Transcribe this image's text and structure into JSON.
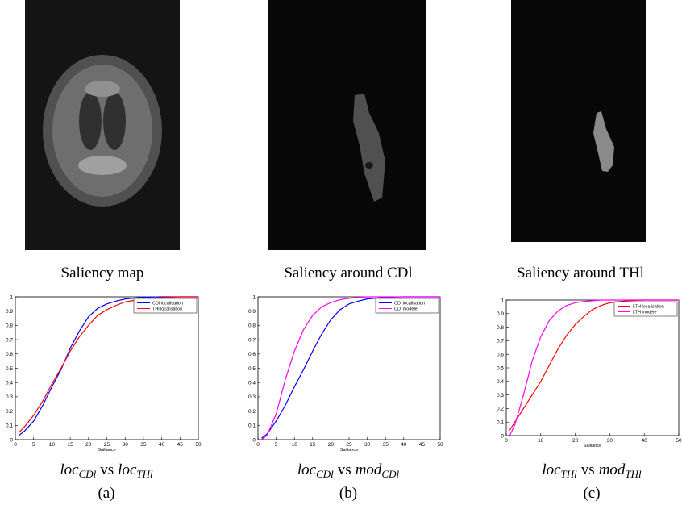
{
  "images": [
    {
      "caption": "Saliency map"
    },
    {
      "caption": "Saliency around CDl"
    },
    {
      "caption": "Saliency around THl"
    }
  ],
  "captions": [
    {
      "left": "loc",
      "left_sub": "CDl",
      "middle": "vs",
      "right": "loc",
      "right_sub": "THl",
      "label": "(a)"
    },
    {
      "left": "loc",
      "left_sub": "CDl",
      "middle": "vs",
      "right": "mod",
      "right_sub": "CDl",
      "label": "(b)"
    },
    {
      "left": "loc",
      "left_sub": "THl",
      "middle": "vs",
      "right": "mod",
      "right_sub": "THl",
      "label": "(c)"
    }
  ],
  "chart_data": [
    {
      "type": "line",
      "xlabel": "Saillance",
      "xlim": [
        0,
        50
      ],
      "ylim": [
        0,
        1
      ],
      "xticks": [
        0,
        5,
        10,
        15,
        20,
        25,
        30,
        35,
        40,
        45,
        50
      ],
      "yticks": [
        0,
        0.1,
        0.2,
        0.3,
        0.4,
        0.5,
        0.6,
        0.7,
        0.8,
        0.9,
        1
      ],
      "legend": "upper right",
      "x": [
        1,
        2.5,
        5,
        7.5,
        10,
        12.5,
        15,
        17.5,
        20,
        22.5,
        25,
        27.5,
        30,
        35,
        40,
        45,
        50
      ],
      "series": [
        {
          "name": "CDl localisation",
          "color": "#0000ff",
          "values": [
            0.03,
            0.06,
            0.13,
            0.24,
            0.37,
            0.49,
            0.64,
            0.76,
            0.86,
            0.92,
            0.95,
            0.97,
            0.985,
            0.997,
            1,
            1,
            1
          ]
        },
        {
          "name": "THl localisation",
          "color": "#ff0000",
          "values": [
            0.05,
            0.09,
            0.17,
            0.27,
            0.39,
            0.5,
            0.62,
            0.72,
            0.8,
            0.87,
            0.91,
            0.94,
            0.965,
            0.985,
            0.995,
            1,
            1
          ]
        }
      ]
    },
    {
      "type": "line",
      "xlabel": "Saillance",
      "xlim": [
        0,
        50
      ],
      "ylim": [
        0,
        1
      ],
      "xticks": [
        0,
        5,
        10,
        15,
        20,
        25,
        30,
        35,
        40,
        45,
        50
      ],
      "yticks": [
        0,
        0.1,
        0.2,
        0.3,
        0.4,
        0.5,
        0.6,
        0.7,
        0.8,
        0.9,
        1
      ],
      "legend": "upper right",
      "x": [
        1,
        2.5,
        5,
        7.5,
        10,
        12.5,
        15,
        17.5,
        20,
        22.5,
        25,
        27.5,
        30,
        35,
        40,
        45,
        50
      ],
      "series": [
        {
          "name": "CDl localisation",
          "color": "#0000ff",
          "values": [
            0.01,
            0.04,
            0.13,
            0.24,
            0.37,
            0.49,
            0.62,
            0.74,
            0.84,
            0.91,
            0.95,
            0.97,
            0.985,
            0.997,
            1,
            1,
            1
          ]
        },
        {
          "name": "CDl modele",
          "color": "#ff00ff",
          "values": [
            0,
            0.03,
            0.18,
            0.42,
            0.62,
            0.77,
            0.87,
            0.93,
            0.96,
            0.98,
            0.99,
            0.995,
            1,
            1,
            1,
            1,
            1
          ]
        }
      ]
    },
    {
      "type": "line",
      "xlabel": "Saillance",
      "xlim": [
        0,
        50
      ],
      "ylim": [
        0,
        1
      ],
      "xticks": [
        0,
        10,
        20,
        30,
        40,
        50
      ],
      "yticks": [
        0,
        0.1,
        0.2,
        0.3,
        0.4,
        0.5,
        0.6,
        0.7,
        0.8,
        0.9,
        1
      ],
      "legend": "upper right",
      "x": [
        1,
        2.5,
        5,
        7.5,
        10,
        12.5,
        15,
        17.5,
        20,
        22.5,
        25,
        27.5,
        30,
        35,
        40,
        45,
        50
      ],
      "series": [
        {
          "name": "LTH localisation",
          "color": "#ff0000",
          "values": [
            0.04,
            0.1,
            0.2,
            0.3,
            0.4,
            0.52,
            0.64,
            0.74,
            0.82,
            0.88,
            0.93,
            0.96,
            0.98,
            0.995,
            1,
            1,
            1
          ]
        },
        {
          "name": "LTH modele",
          "color": "#ff00ff",
          "values": [
            0,
            0.08,
            0.3,
            0.55,
            0.73,
            0.85,
            0.92,
            0.96,
            0.98,
            0.99,
            0.995,
            1,
            1,
            1,
            1,
            1,
            1
          ]
        }
      ]
    }
  ]
}
